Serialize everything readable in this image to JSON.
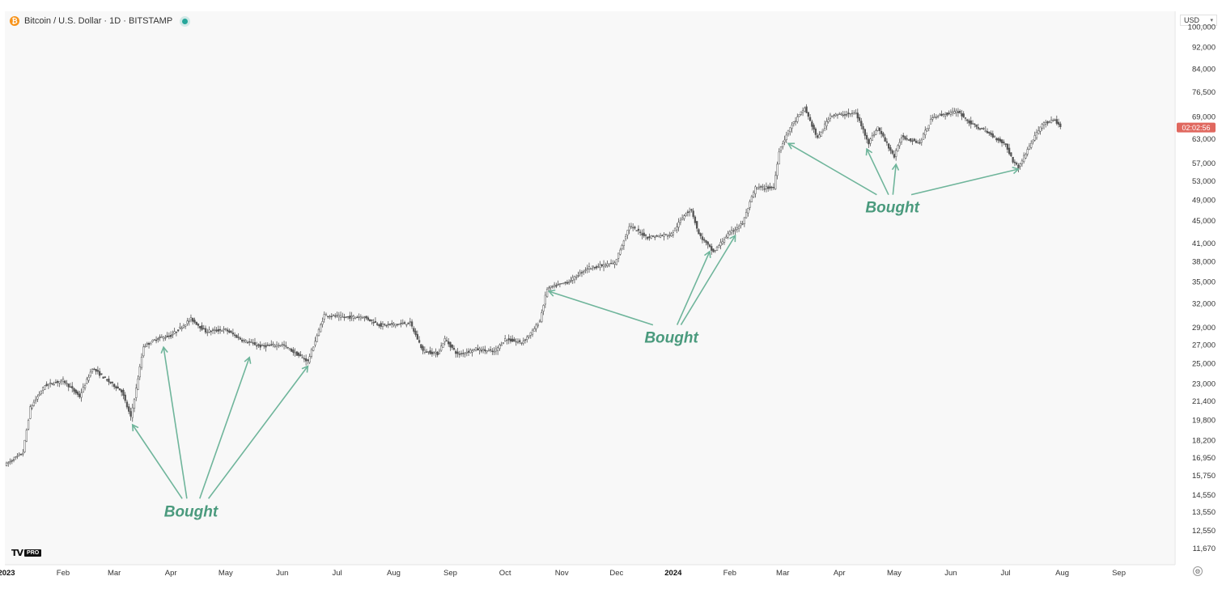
{
  "header": {
    "symbol_title": "Bitcoin / U.S. Dollar · 1D · BITSTAMP",
    "icon": "bitcoin-icon",
    "status_icon": "live-dot-icon"
  },
  "currency_selector": {
    "label": "USD"
  },
  "logo": {
    "brand": "TV",
    "tier": "PRO"
  },
  "price_badge": {
    "text": "02:02:56",
    "color": "#e0685f"
  },
  "colors": {
    "accent": "#4a9a7d",
    "arrow": "#6fb59b",
    "candles": "#555555"
  },
  "chart_data": {
    "type": "candlestick",
    "title": "Bitcoin / U.S. Dollar · 1D · BITSTAMP",
    "ylabel": "USD",
    "yscale": "log",
    "ylim": [
      10900,
      103000
    ],
    "y_ticks": [
      100000,
      92000,
      84000,
      76500,
      69000,
      63000,
      57000,
      53000,
      49000,
      45000,
      41000,
      38000,
      35000,
      32000,
      29000,
      27000,
      25000,
      23000,
      21400,
      19800,
      18200,
      16950,
      15750,
      14550,
      13550,
      12550,
      11670
    ],
    "x_ticks": [
      "2023",
      "Feb",
      "Mar",
      "Apr",
      "May",
      "Jun",
      "Jul",
      "Aug",
      "Sep",
      "Oct",
      "Nov",
      "Dec",
      "2024",
      "Feb",
      "Mar",
      "Apr",
      "May",
      "Jun",
      "Jul",
      "Aug",
      "Sep"
    ],
    "bold_ticks": [
      "2023",
      "2024"
    ],
    "xlim": [
      "2023-01-01",
      "2024-09-30"
    ],
    "price_path": [
      [
        "2023-01-01",
        16500
      ],
      [
        "2023-01-10",
        17300
      ],
      [
        "2023-01-14",
        20800
      ],
      [
        "2023-01-22",
        22800
      ],
      [
        "2023-02-01",
        23300
      ],
      [
        "2023-02-10",
        21800
      ],
      [
        "2023-02-17",
        24500
      ],
      [
        "2023-02-25",
        23300
      ],
      [
        "2023-03-05",
        22300
      ],
      [
        "2023-03-10",
        20000
      ],
      [
        "2023-03-13",
        22500
      ],
      [
        "2023-03-17",
        26800
      ],
      [
        "2023-03-25",
        27700
      ],
      [
        "2023-04-01",
        28000
      ],
      [
        "2023-04-12",
        30000
      ],
      [
        "2023-04-20",
        28500
      ],
      [
        "2023-05-01",
        28700
      ],
      [
        "2023-05-10",
        27500
      ],
      [
        "2023-05-20",
        26800
      ],
      [
        "2023-06-01",
        27000
      ],
      [
        "2023-06-10",
        25800
      ],
      [
        "2023-06-15",
        25200
      ],
      [
        "2023-06-20",
        28000
      ],
      [
        "2023-06-24",
        30500
      ],
      [
        "2023-07-05",
        30200
      ],
      [
        "2023-07-15",
        30300
      ],
      [
        "2023-07-25",
        29200
      ],
      [
        "2023-08-10",
        29500
      ],
      [
        "2023-08-17",
        26300
      ],
      [
        "2023-08-25",
        26000
      ],
      [
        "2023-08-29",
        27600
      ],
      [
        "2023-09-05",
        25900
      ],
      [
        "2023-09-15",
        26500
      ],
      [
        "2023-09-25",
        26200
      ],
      [
        "2023-10-01",
        27600
      ],
      [
        "2023-10-10",
        27200
      ],
      [
        "2023-10-16",
        28500
      ],
      [
        "2023-10-20",
        29800
      ],
      [
        "2023-10-24",
        34000
      ],
      [
        "2023-11-05",
        35000
      ],
      [
        "2023-11-15",
        37000
      ],
      [
        "2023-11-30",
        37700
      ],
      [
        "2023-12-05",
        41500
      ],
      [
        "2023-12-08",
        44000
      ],
      [
        "2023-12-18",
        42000
      ],
      [
        "2023-12-31",
        42500
      ],
      [
        "2024-01-08",
        46500
      ],
      [
        "2024-01-11",
        47000
      ],
      [
        "2024-01-15",
        42500
      ],
      [
        "2024-01-23",
        39500
      ],
      [
        "2024-01-31",
        42500
      ],
      [
        "2024-02-08",
        44500
      ],
      [
        "2024-02-15",
        51500
      ],
      [
        "2024-02-25",
        51500
      ],
      [
        "2024-02-28",
        60000
      ],
      [
        "2024-03-05",
        66000
      ],
      [
        "2024-03-13",
        71500
      ],
      [
        "2024-03-20",
        63000
      ],
      [
        "2024-03-27",
        69500
      ],
      [
        "2024-04-01",
        69500
      ],
      [
        "2024-04-10",
        70000
      ],
      [
        "2024-04-17",
        62000
      ],
      [
        "2024-04-22",
        66000
      ],
      [
        "2024-05-01",
        58500
      ],
      [
        "2024-05-05",
        63500
      ],
      [
        "2024-05-15",
        62000
      ],
      [
        "2024-05-22",
        69000
      ],
      [
        "2024-06-05",
        70500
      ],
      [
        "2024-06-12",
        67000
      ],
      [
        "2024-06-20",
        65000
      ],
      [
        "2024-07-01",
        61500
      ],
      [
        "2024-07-05",
        57500
      ],
      [
        "2024-07-08",
        56000
      ],
      [
        "2024-07-15",
        62000
      ],
      [
        "2024-07-21",
        67000
      ],
      [
        "2024-07-28",
        68000
      ],
      [
        "2024-07-31",
        66000
      ]
    ],
    "annotations": [
      {
        "text": "Bought",
        "at": [
          "2023-04-12",
          13300
        ],
        "arrows_to": [
          [
            "2023-03-11",
            19400
          ],
          [
            "2023-03-28",
            26700
          ],
          [
            "2023-05-14",
            25600
          ],
          [
            "2023-06-15",
            24700
          ]
        ]
      },
      {
        "text": "Bought",
        "at": [
          "2023-12-31",
          27200
        ],
        "arrows_to": [
          [
            "2023-10-25",
            33600
          ],
          [
            "2024-01-21",
            39600
          ],
          [
            "2024-02-04",
            42300
          ]
        ]
      },
      {
        "text": "Bought",
        "at": [
          "2024-04-30",
          46500
        ],
        "arrows_to": [
          [
            "2024-03-04",
            61800
          ],
          [
            "2024-04-16",
            60400
          ],
          [
            "2024-05-02",
            56700
          ],
          [
            "2024-07-08",
            55600
          ]
        ]
      }
    ]
  }
}
